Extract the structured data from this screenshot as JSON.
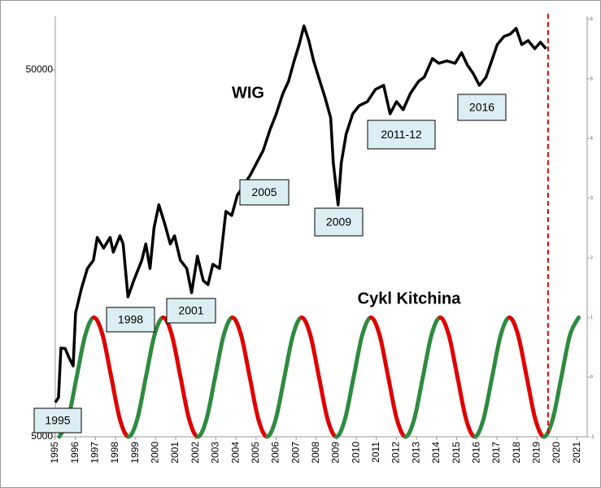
{
  "chart_data": {
    "type": "line",
    "xlim": [
      1995,
      2021.5
    ],
    "xticks": [
      1995,
      1996,
      1997,
      1998,
      1999,
      2000,
      2001,
      2002,
      2003,
      2004,
      2005,
      2006,
      2007,
      2008,
      2009,
      2010,
      2011,
      2012,
      2013,
      2014,
      2015,
      2016,
      2017,
      2018,
      2019,
      2020,
      2021
    ],
    "ylim": [
      5000,
      70000
    ],
    "yticks": [
      5000,
      50000
    ],
    "log_y": true,
    "y2lim": [
      -1,
      6.05
    ],
    "y2ticks": [
      -1,
      0,
      1,
      2,
      3,
      4,
      5,
      6
    ],
    "marker_x": 2019.55,
    "marker_color": "#e00000",
    "annotations": [
      "1995",
      "1998",
      "2001",
      "2005",
      "2009",
      "2011-12",
      "2016"
    ],
    "series": [
      {
        "name": "WIG",
        "color": "#000000",
        "x": [
          1995.0,
          1995.16,
          1995.28,
          1995.49,
          1995.69,
          1995.89,
          1996.01,
          1996.3,
          1996.6,
          1996.9,
          1997.09,
          1997.41,
          1997.73,
          1997.89,
          1998.22,
          1998.38,
          1998.62,
          1998.91,
          1999.31,
          1999.51,
          1999.72,
          1999.92,
          2000.16,
          2000.45,
          2000.73,
          2000.94,
          2001.23,
          2001.55,
          2001.79,
          2002.08,
          2002.37,
          2002.61,
          2002.85,
          2003.18,
          2003.5,
          2003.79,
          2004.07,
          2004.39,
          2004.72,
          2005.04,
          2005.36,
          2005.69,
          2006.01,
          2006.34,
          2006.62,
          2006.9,
          2007.15,
          2007.39,
          2007.63,
          2007.87,
          2008.12,
          2008.44,
          2008.72,
          2008.85,
          2009.09,
          2009.25,
          2009.49,
          2009.82,
          2010.14,
          2010.55,
          2010.95,
          2011.36,
          2011.68,
          2012.0,
          2012.33,
          2012.69,
          2013.1,
          2013.38,
          2013.79,
          2014.11,
          2014.51,
          2014.92,
          2015.24,
          2015.53,
          2015.81,
          2016.13,
          2016.46,
          2016.74,
          2017.02,
          2017.35,
          2017.67,
          2017.96,
          2018.24,
          2018.56,
          2018.89,
          2019.17,
          2019.45
        ],
        "values": [
          6200,
          6400,
          8720,
          8700,
          8200,
          7800,
          10870,
          12660,
          14380,
          15140,
          17470,
          16340,
          17470,
          15930,
          17650,
          16770,
          12030,
          13330,
          15140,
          16770,
          14380,
          18570,
          21430,
          19050,
          16770,
          17650,
          15140,
          14380,
          12350,
          15530,
          13330,
          12990,
          14760,
          14380,
          20570,
          20050,
          22780,
          24210,
          25880,
          27940,
          30170,
          34250,
          37960,
          43120,
          46540,
          52900,
          58600,
          65900,
          60100,
          52900,
          47750,
          42040,
          37000,
          27940,
          21430,
          27940,
          33400,
          37960,
          39940,
          40970,
          44230,
          45370,
          37960,
          40970,
          38930,
          43120,
          46540,
          47750,
          53700,
          52100,
          52900,
          52100,
          55700,
          51550,
          49000,
          45370,
          47750,
          52900,
          58600,
          61650,
          62600,
          64900,
          58600,
          60100,
          57100,
          59500,
          57100
        ]
      },
      {
        "name": "Cykl Kitchina",
        "axis": "y2",
        "color_rising": "#2e8b3e",
        "color_falling": "#e00000",
        "x": [
          1995.2,
          1995.631,
          1996.063,
          1996.494,
          1996.925,
          1997.356,
          1997.788,
          1998.219,
          1998.65,
          1999.081,
          1999.513,
          1999.944,
          2000.375,
          2000.806,
          2001.238,
          2001.669,
          2002.1,
          2002.531,
          2002.963,
          2003.394,
          2003.825,
          2004.256,
          2004.688,
          2005.119,
          2005.55,
          2005.981,
          2006.413,
          2006.844,
          2007.275,
          2007.706,
          2008.138,
          2008.569,
          2009.0,
          2009.431,
          2009.863,
          2010.294,
          2010.725,
          2011.156,
          2011.588,
          2012.019,
          2012.45,
          2012.881,
          2013.313,
          2013.744,
          2014.175,
          2014.606,
          2015.038,
          2015.469,
          2015.9,
          2016.331,
          2016.763,
          2017.194,
          2017.625,
          2018.056,
          2018.488,
          2018.919,
          2019.35,
          2019.781,
          2020.213,
          2020.644,
          2021.075
        ],
        "values": [
          -1,
          -0.707,
          0,
          0.707,
          1,
          0.707,
          0,
          -0.707,
          -1,
          -0.707,
          0,
          0.707,
          1,
          0.707,
          0,
          -0.707,
          -1,
          -0.707,
          0,
          0.707,
          1,
          0.707,
          0,
          -0.707,
          -1,
          -0.707,
          0,
          0.707,
          1,
          0.707,
          0,
          -0.707,
          -1,
          -0.707,
          0,
          0.707,
          1,
          0.707,
          0,
          -0.707,
          -1,
          -0.707,
          0,
          0.707,
          1,
          0.707,
          0,
          -0.707,
          -1,
          -0.707,
          0,
          0.707,
          1,
          0.707,
          0,
          -0.707,
          -1,
          -0.707,
          0,
          0.707,
          1
        ]
      }
    ]
  }
}
